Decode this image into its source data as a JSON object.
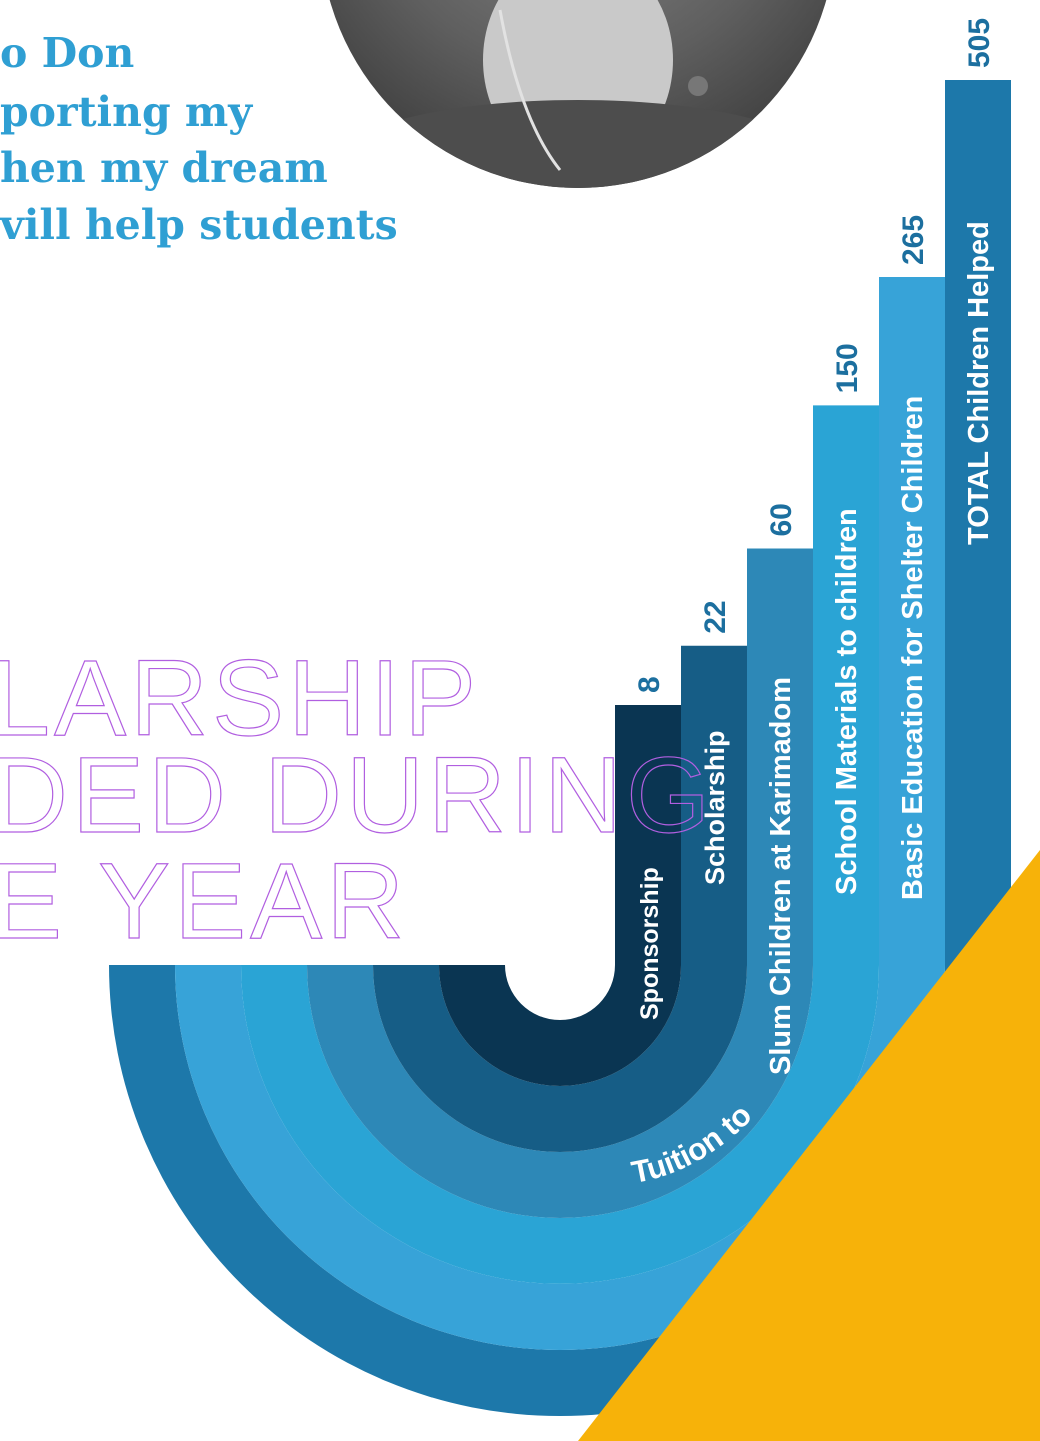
{
  "quote": {
    "lines": [
      "o Don",
      "porting my",
      "hen my dream",
      "vill help students"
    ]
  },
  "headline": {
    "lines": [
      "LARSHIP",
      "DED DURING",
      "E YEAR"
    ]
  },
  "colors": {
    "accent_orange": "#f7b209",
    "quote_blue": "#2f9fd3",
    "headline_purple": "#b15fe0",
    "value_blue": "#1c6f9f"
  },
  "chart_data": {
    "type": "bar",
    "orientation": "vertical-stepped",
    "categories": [
      "Sponsorship",
      "Scholarship",
      "Tuition to Slum Children at Karimadom",
      "School Materials to children",
      "Basic Education for Shelter Children",
      "TOTAL Children Helped"
    ],
    "values": [
      8,
      22,
      60,
      150,
      265,
      505
    ],
    "value_labels": [
      "8",
      "22",
      "60",
      "150",
      "265",
      "505"
    ],
    "bar_colors": [
      "#0a3552",
      "#165d86",
      "#2d88b7",
      "#2aa4d5",
      "#37a3d8",
      "#1d78aa"
    ],
    "label_parts": {
      "tuition_prefix": "Tuition to ",
      "tuition_rest": "Slum Children at Karimadom"
    }
  }
}
